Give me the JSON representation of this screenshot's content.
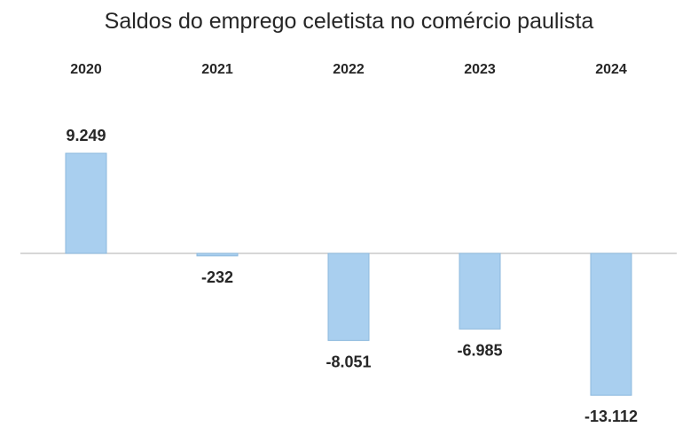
{
  "chart_data": {
    "type": "bar",
    "title": "Saldos do emprego celetista no comércio paulista",
    "categories": [
      "2020",
      "2021",
      "2022",
      "2023",
      "2024"
    ],
    "values": [
      9249,
      -232,
      -8051,
      -6985,
      -13112
    ],
    "value_labels": [
      "9.249",
      "-232",
      "-8.051",
      "-6.985",
      "-13.112"
    ],
    "category_axis_position": "top",
    "ylim": [
      -13112,
      9249
    ],
    "grid": false,
    "legend": "none",
    "colors": {
      "bar_fill": "#A9CFEF",
      "bar_stroke": "#8DB9DD",
      "axis": "#BFBFBF",
      "text": "#262626"
    }
  }
}
